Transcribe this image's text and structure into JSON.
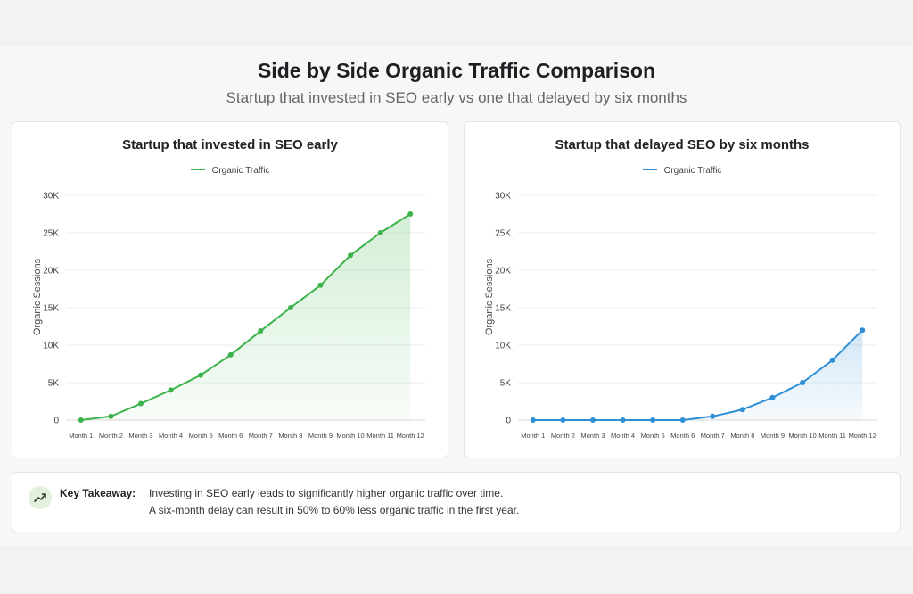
{
  "header": {
    "title": "Side by Side Organic Traffic Comparison",
    "subtitle": "Startup that invested in SEO early vs one that delayed by six months"
  },
  "colors": {
    "early": "#3bb34a",
    "delayed": "#2f8fd6",
    "grid": "#ececec",
    "icon_bg": "#e3f1dc"
  },
  "chart_data": [
    {
      "type": "line",
      "title": "Startup that invested in SEO early",
      "ylabel": "Organic Sessions",
      "xlabel": "",
      "categories": [
        "Month 1",
        "Month 2",
        "Month 3",
        "Month 4",
        "Month 5",
        "Month 6",
        "Month 7",
        "Month 8",
        "Month 9",
        "Month 10",
        "Month 11",
        "Month 12"
      ],
      "series": [
        {
          "name": "Organic Traffic",
          "values": [
            0,
            500,
            2200,
            4000,
            6000,
            8700,
            11900,
            15000,
            18000,
            22000,
            25000,
            27500
          ],
          "color": "#3bb34a"
        }
      ],
      "ylim": [
        0,
        30000
      ],
      "yticks": [
        0,
        5000,
        10000,
        15000,
        20000,
        25000,
        30000
      ],
      "ytick_labels": [
        "0",
        "5K",
        "10K",
        "15K",
        "20K",
        "25K",
        "30K"
      ],
      "area_fill": true,
      "grid": "horizontal",
      "legend": "top-center"
    },
    {
      "type": "line",
      "title": "Startup that delayed SEO by six months",
      "ylabel": "Organic Sessions",
      "xlabel": "",
      "categories": [
        "Month 1",
        "Month 2",
        "Month 3",
        "Month 4",
        "Month 5",
        "Month 6",
        "Month 7",
        "Month 8",
        "Month 9",
        "Month 10",
        "Month 11",
        "Month 12"
      ],
      "series": [
        {
          "name": "Organic Traffic",
          "values": [
            0,
            0,
            0,
            0,
            0,
            0,
            500,
            1400,
            3000,
            5000,
            8000,
            12000
          ],
          "color": "#2f8fd6"
        }
      ],
      "ylim": [
        0,
        30000
      ],
      "yticks": [
        0,
        5000,
        10000,
        15000,
        20000,
        25000,
        30000
      ],
      "ytick_labels": [
        "0",
        "5K",
        "10K",
        "15K",
        "20K",
        "25K",
        "30K"
      ],
      "area_fill": true,
      "grid": "horizontal",
      "legend": "top-center"
    }
  ],
  "takeaway": {
    "icon": "trend-up-icon",
    "label": "Key Takeaway:",
    "line1": "Investing in SEO early leads to significantly higher organic traffic over time.",
    "line2": "A six-month delay can result in 50% to 60% less organic traffic in the first year."
  }
}
